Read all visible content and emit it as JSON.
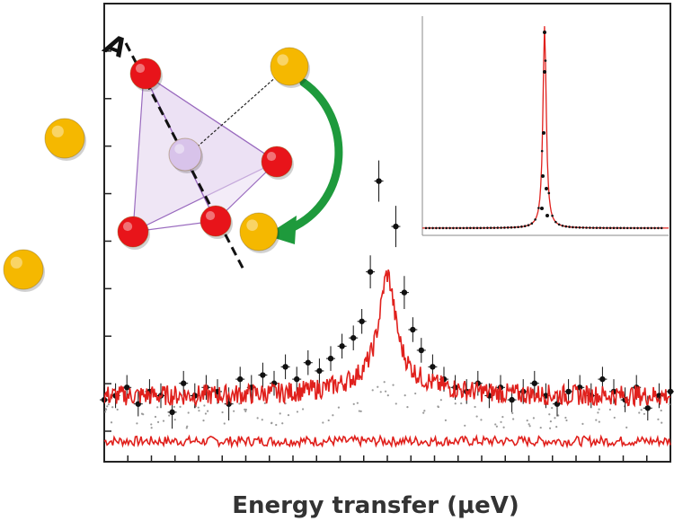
{
  "chart_data": {
    "type": "scatter",
    "title": "",
    "xlabel": "Energy transfer (µeV)",
    "ylabel": "",
    "grid": false,
    "legend": "none",
    "xlim": [
      -10,
      10
    ],
    "ylim": [
      -1.5,
      9.6
    ],
    "x_ticks_count": 24,
    "y_ticks_count": 9,
    "series": [
      {
        "kind": "points-with-error-bars",
        "color": "#111111",
        "x": [
          -10.0,
          -9.6,
          -9.2,
          -8.8,
          -8.4,
          -8.0,
          -7.6,
          -7.2,
          -6.8,
          -6.4,
          -6.0,
          -5.6,
          -5.2,
          -4.8,
          -4.4,
          -4.0,
          -3.6,
          -3.2,
          -2.8,
          -2.4,
          -2.0,
          -1.6,
          -1.2,
          -0.9,
          -0.6,
          -0.3,
          0.3,
          0.6,
          0.9,
          1.2,
          1.6,
          2.0,
          2.4,
          2.8,
          3.2,
          3.6,
          4.0,
          4.4,
          4.8,
          5.2,
          5.6,
          6.0,
          6.4,
          6.8,
          7.2,
          7.6,
          8.0,
          8.4,
          8.8,
          9.2,
          9.6,
          10.0
        ],
        "y": [
          0.0,
          0.1,
          0.3,
          -0.1,
          0.2,
          0.1,
          -0.3,
          0.4,
          0.1,
          0.3,
          0.2,
          -0.1,
          0.5,
          0.3,
          0.6,
          0.4,
          0.8,
          0.5,
          0.9,
          0.7,
          1.0,
          1.3,
          1.5,
          1.9,
          3.1,
          5.3,
          4.2,
          2.6,
          1.7,
          1.2,
          0.8,
          0.5,
          0.3,
          0.2,
          0.4,
          0.1,
          0.3,
          0.0,
          0.2,
          0.4,
          0.1,
          -0.1,
          0.2,
          0.3,
          0.1,
          0.5,
          0.2,
          0.0,
          0.3,
          -0.2,
          0.1,
          0.2
        ],
        "err": [
          0.3,
          0.3,
          0.3,
          0.3,
          0.3,
          0.3,
          0.4,
          0.3,
          0.3,
          0.3,
          0.3,
          0.4,
          0.3,
          0.3,
          0.3,
          0.3,
          0.3,
          0.3,
          0.3,
          0.3,
          0.3,
          0.3,
          0.3,
          0.3,
          0.4,
          0.5,
          0.5,
          0.4,
          0.3,
          0.3,
          0.3,
          0.3,
          0.3,
          0.3,
          0.3,
          0.3,
          0.3,
          0.3,
          0.3,
          0.3,
          0.3,
          0.3,
          0.3,
          0.3,
          0.3,
          0.3,
          0.3,
          0.3,
          0.3,
          0.3,
          0.3,
          0.3
        ]
      },
      {
        "kind": "fit-line",
        "color": "#e0201c",
        "center": 0.0,
        "width": 0.35,
        "amplitude": 40,
        "baseline": 0.1
      },
      {
        "kind": "residual-line",
        "color": "#e0201c",
        "baseline": -1.0,
        "noise": 0.12
      },
      {
        "kind": "elastic-dots",
        "color": "#9a9a9a"
      }
    ],
    "inset": {
      "type": "line",
      "color": "#111111",
      "peak_color": "#e0201c",
      "description_free": true
    }
  },
  "diagram": {
    "tetrahedron_fill": "#e9ddf2",
    "tetrahedron_edge": "#9a6bbf",
    "center_atom_color": "#d8c3ea",
    "corner_atom_color": "#e8141a",
    "outer_atom_color": "#f5b800",
    "arrow_color": "#1e9a3c",
    "axis_label": "A"
  }
}
